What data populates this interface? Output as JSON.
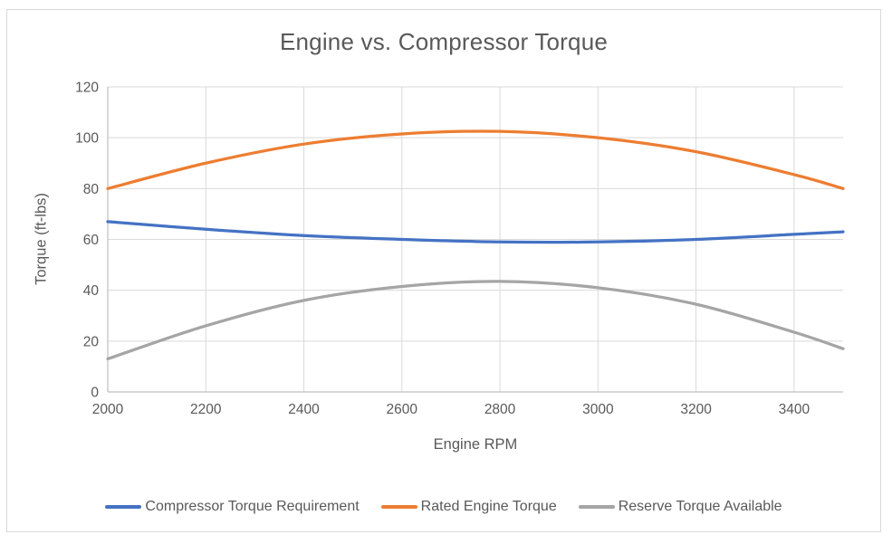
{
  "chart_data": {
    "type": "line",
    "title": "Engine vs. Compressor Torque",
    "xlabel": "Engine RPM",
    "ylabel": "Torque (ft-lbs)",
    "x": [
      2000,
      2200,
      2400,
      2600,
      2800,
      3000,
      3200,
      3400,
      3500
    ],
    "series": [
      {
        "name": "Compressor Torque Requirement",
        "color": "#4472C4",
        "values": [
          67,
          64,
          61.5,
          60,
          59,
          59,
          60,
          62,
          63
        ]
      },
      {
        "name": "Rated Engine Torque",
        "color": "#ED7D31",
        "values": [
          80,
          90,
          97.5,
          101.5,
          102.5,
          100,
          94.5,
          85.5,
          80
        ]
      },
      {
        "name": "Reserve Torque Available",
        "color": "#A5A5A5",
        "values": [
          13,
          26,
          36,
          41.5,
          43.5,
          41,
          34.5,
          23.5,
          17
        ]
      }
    ],
    "xlim": [
      2000,
      3500
    ],
    "ylim": [
      0,
      120
    ],
    "x_ticks": [
      2000,
      2200,
      2400,
      2600,
      2800,
      3000,
      3200,
      3400
    ],
    "y_ticks": [
      0,
      20,
      40,
      60,
      80,
      100,
      120
    ],
    "grid": true,
    "legend_position": "bottom",
    "line_width": 3.25,
    "colors": {
      "text": "#595959",
      "gridline": "#d9d9d9",
      "axis": "#bfbfbf",
      "frame_border": "#d9d9d9",
      "background": "#ffffff"
    }
  }
}
